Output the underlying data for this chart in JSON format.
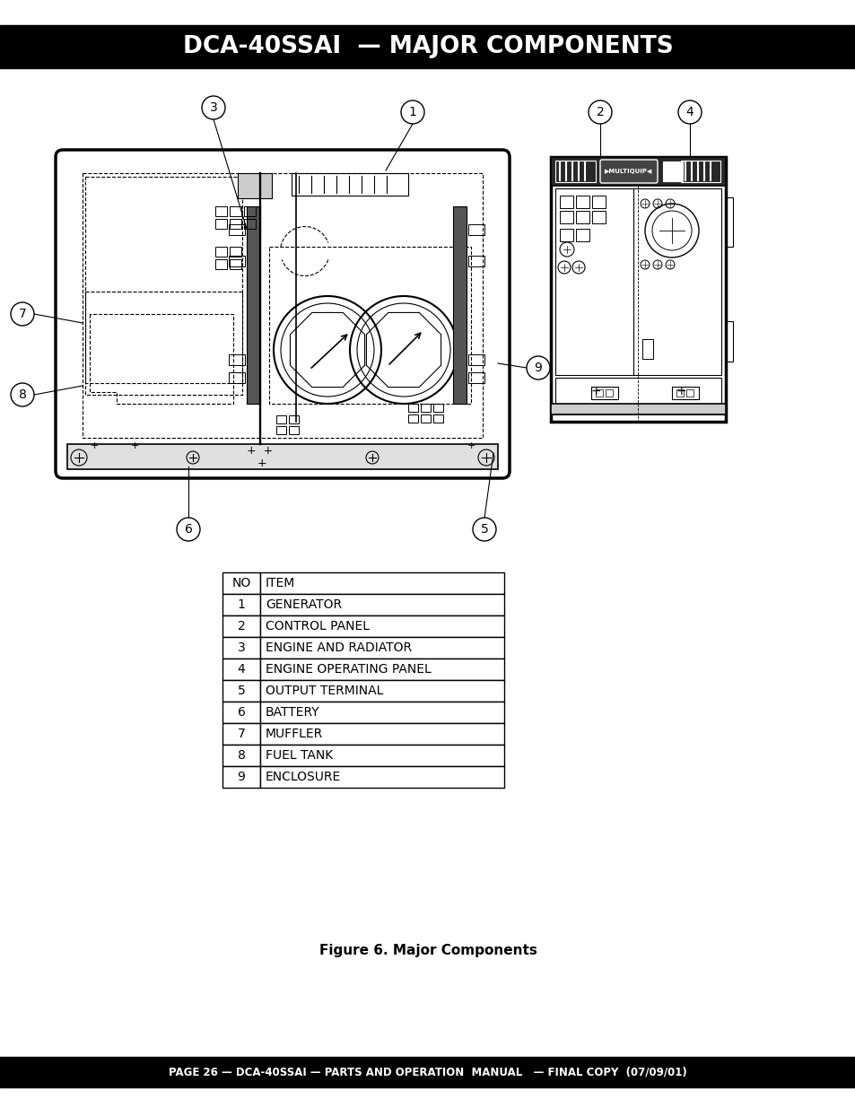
{
  "title": "DCA-40SSAI  — MAJOR COMPONENTS",
  "footer": "PAGE 26 — DCA-40SSAI — PARTS AND OPERATION  MANUAL   — FINAL COPY  (07/09/01)",
  "caption": "Figure 6. Major Components",
  "table_headers": [
    "NO",
    "ITEM"
  ],
  "table_rows": [
    [
      "1",
      "GENERATOR"
    ],
    [
      "2",
      "CONTROL PANEL"
    ],
    [
      "3",
      "ENGINE AND RADIATOR"
    ],
    [
      "4",
      "ENGINE OPERATING PANEL"
    ],
    [
      "5",
      "OUTPUT TERMINAL"
    ],
    [
      "6",
      "BATTERY"
    ],
    [
      "7",
      "MUFFLER"
    ],
    [
      "8",
      "FUEL TANK"
    ],
    [
      "9",
      "ENCLOSURE"
    ]
  ],
  "bg_color": "#ffffff",
  "header_bg": "#000000",
  "header_fg": "#ffffff",
  "footer_bg": "#000000",
  "footer_fg": "#ffffff",
  "page_width": 9.54,
  "page_height": 12.35
}
